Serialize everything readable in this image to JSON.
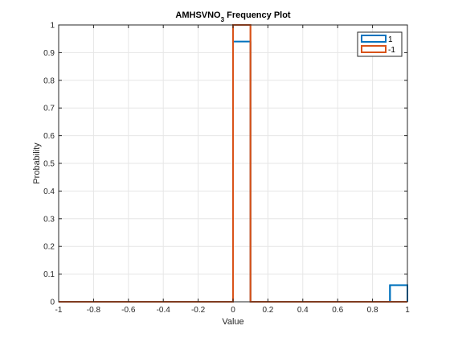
{
  "chart_data": {
    "type": "histogram",
    "title": {
      "main": "AMHSVNO",
      "subscript": "3",
      "suffix": " Frequency Plot"
    },
    "xlabel": "Value",
    "ylabel": "Probability",
    "xlim": [
      -1,
      1
    ],
    "ylim": [
      0,
      1
    ],
    "xticks": [
      -1,
      -0.8,
      -0.6,
      -0.4,
      -0.2,
      0,
      0.2,
      0.4,
      0.6,
      0.8,
      1
    ],
    "yticks": [
      0,
      0.1,
      0.2,
      0.3,
      0.4,
      0.5,
      0.6,
      0.7,
      0.8,
      0.9,
      1
    ],
    "grid": true,
    "legend_position": "top-right",
    "series": [
      {
        "name": "1",
        "color": "#0072BD",
        "bins": [
          {
            "x0": -1,
            "x1": 0,
            "value": 0
          },
          {
            "x0": 0,
            "x1": 0.1,
            "value": 0.94
          },
          {
            "x0": 0.1,
            "x1": 0.9,
            "value": 0
          },
          {
            "x0": 0.9,
            "x1": 1,
            "value": 0.06
          }
        ]
      },
      {
        "name": "-1",
        "color": "#D95319",
        "bins": [
          {
            "x0": -1,
            "x1": 0,
            "value": 0
          },
          {
            "x0": 0,
            "x1": 0.1,
            "value": 1.0
          },
          {
            "x0": 0.1,
            "x1": 1,
            "value": 0
          }
        ]
      }
    ]
  }
}
